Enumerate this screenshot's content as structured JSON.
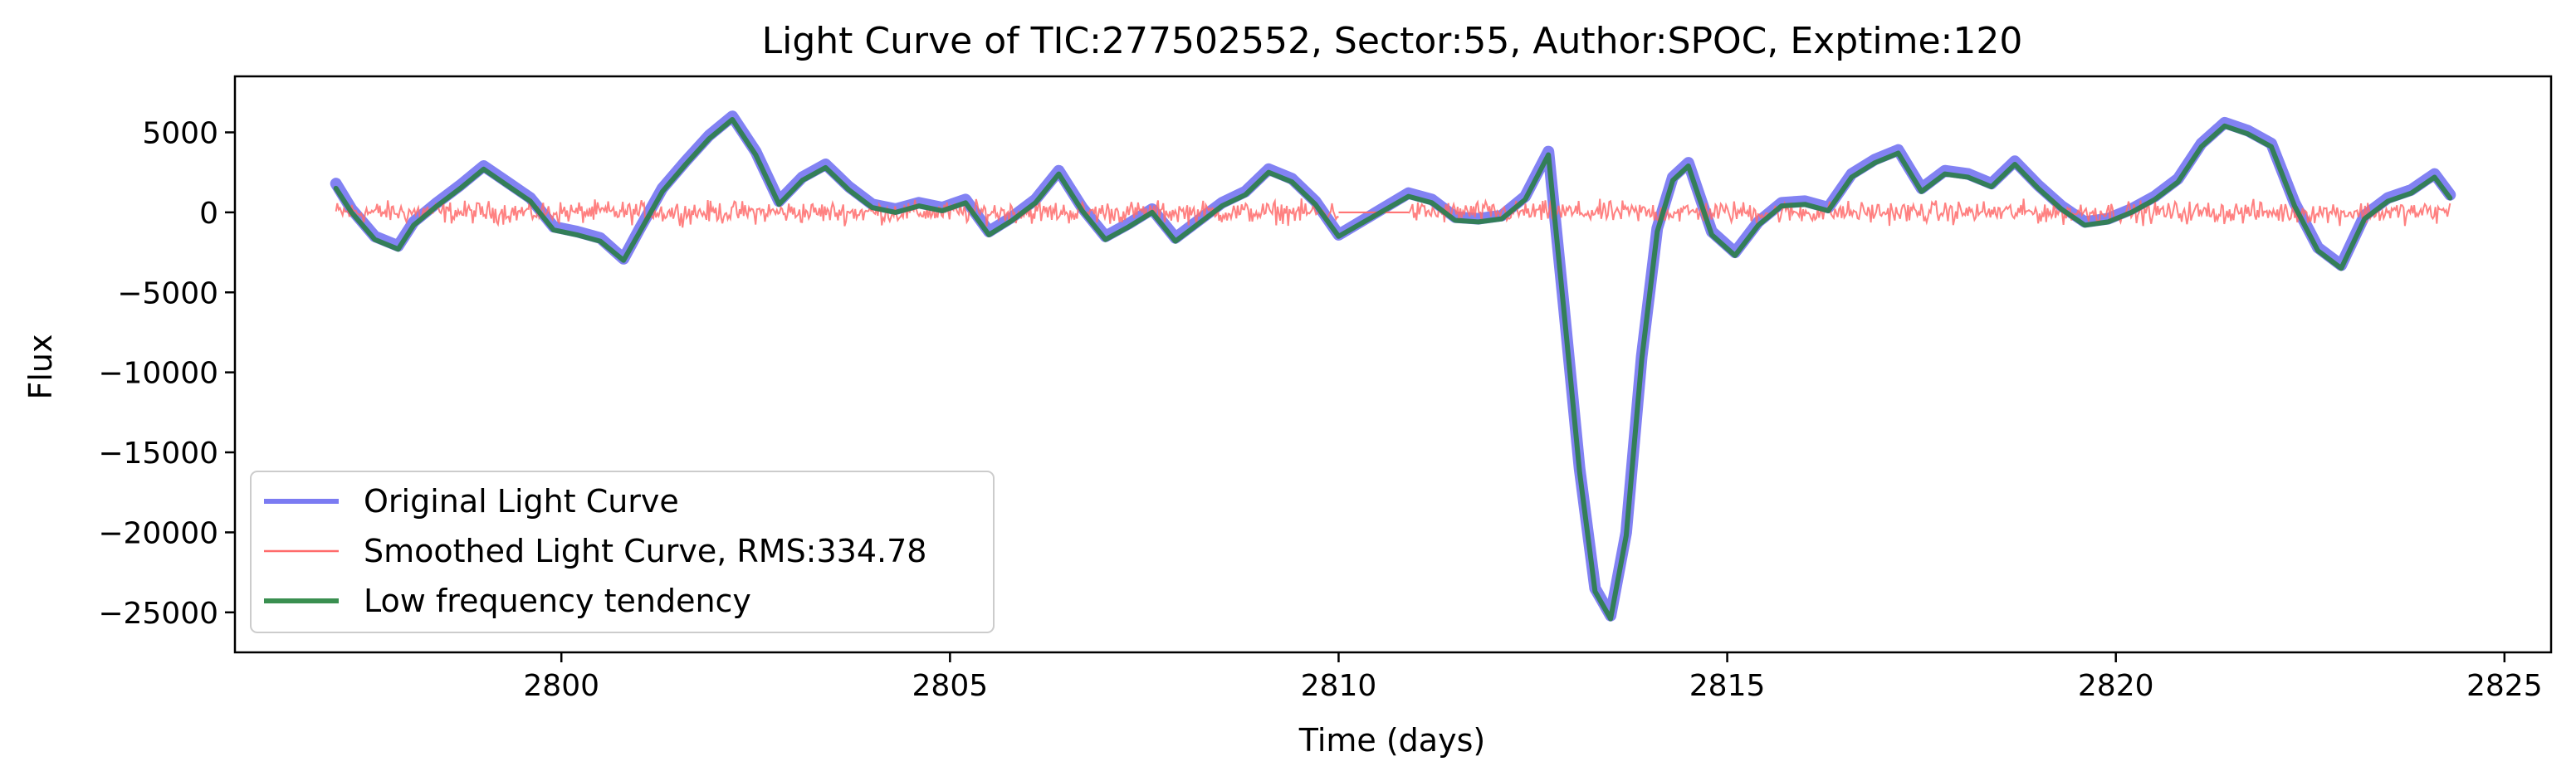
{
  "chart_data": {
    "type": "line",
    "title": "Light Curve of TIC:277502552, Sector:55, Author:SPOC, Exptime:120",
    "xlabel": "Time (days)",
    "ylabel": "Flux",
    "xlim": [
      2795.8,
      2825.6
    ],
    "ylim": [
      -27500,
      8500
    ],
    "xticks": [
      2800,
      2805,
      2810,
      2815,
      2820,
      2825
    ],
    "xtick_labels": [
      "2800",
      "2805",
      "2810",
      "2815",
      "2820",
      "2825"
    ],
    "yticks": [
      5000,
      0,
      -5000,
      -10000,
      -15000,
      -20000,
      -25000
    ],
    "ytick_labels": [
      "5000",
      "0",
      "−5000",
      "−10000",
      "−15000",
      "−20000",
      "−25000"
    ],
    "legend_position": "lower-left",
    "grid": false,
    "series": [
      {
        "name": "Original Light Curve",
        "color": "#7b7bf2",
        "style": "thick band",
        "x": [
          2797.1,
          2797.3,
          2797.6,
          2797.9,
          2798.1,
          2798.4,
          2798.7,
          2799.0,
          2799.3,
          2799.6,
          2799.9,
          2800.2,
          2800.5,
          2800.8,
          2801.0,
          2801.3,
          2801.6,
          2801.9,
          2802.2,
          2802.5,
          2802.8,
          2803.1,
          2803.4,
          2803.7,
          2804.0,
          2804.3,
          2804.6,
          2804.9,
          2805.2,
          2805.5,
          2805.8,
          2806.1,
          2806.4,
          2806.7,
          2807.0,
          2807.3,
          2807.6,
          2807.9,
          2808.2,
          2808.5,
          2808.8,
          2809.1,
          2809.4,
          2809.7,
          2810.0,
          2810.9,
          2811.2,
          2811.5,
          2811.8,
          2812.1,
          2812.4,
          2812.7,
          2812.9,
          2813.1,
          2813.3,
          2813.5,
          2813.7,
          2813.9,
          2814.1,
          2814.3,
          2814.5,
          2814.8,
          2815.1,
          2815.4,
          2815.7,
          2816.0,
          2816.3,
          2816.6,
          2816.9,
          2817.2,
          2817.5,
          2817.8,
          2818.1,
          2818.4,
          2818.7,
          2819.0,
          2819.3,
          2819.6,
          2819.9,
          2820.2,
          2820.5,
          2820.8,
          2821.1,
          2821.4,
          2821.7,
          2822.0,
          2822.3,
          2822.6,
          2822.9,
          2823.2,
          2823.5,
          2823.8,
          2824.1,
          2824.3
        ],
        "y": [
          1800,
          200,
          -1500,
          -2100,
          -600,
          600,
          1700,
          2900,
          1900,
          900,
          -900,
          -1200,
          -1600,
          -2900,
          -1100,
          1500,
          3200,
          4800,
          6000,
          3800,
          700,
          2200,
          3000,
          1600,
          500,
          200,
          600,
          300,
          800,
          -1200,
          -300,
          800,
          2600,
          300,
          -1500,
          -700,
          200,
          -1600,
          -500,
          600,
          1300,
          2700,
          2100,
          700,
          -1400,
          1200,
          800,
          -300,
          -400,
          -200,
          1000,
          3800,
          -6000,
          -16000,
          -23500,
          -25200,
          -20000,
          -9000,
          -1000,
          2200,
          3100,
          -1200,
          -2500,
          -600,
          600,
          700,
          300,
          2400,
          3300,
          3900,
          1500,
          2600,
          2400,
          1800,
          3200,
          1700,
          400,
          -600,
          -400,
          200,
          1000,
          2100,
          4300,
          5600,
          5100,
          4300,
          600,
          -2200,
          -3300,
          -200,
          900,
          1400,
          2400,
          1100
        ]
      },
      {
        "name": "Smoothed Light Curve, RMS:334.78",
        "color": "#ff6b6b",
        "style": "thin noisy line",
        "x_start": 2797.1,
        "x_end": 2824.3,
        "gap": [
          2810.0,
          2810.9
        ],
        "mean": 0,
        "rms": 334.78
      },
      {
        "name": "Low frequency tendency",
        "color": "#2e7d4f",
        "style": "thick line",
        "x": [
          2797.1,
          2797.3,
          2797.6,
          2797.9,
          2798.1,
          2798.4,
          2798.7,
          2799.0,
          2799.3,
          2799.6,
          2799.9,
          2800.2,
          2800.5,
          2800.8,
          2801.0,
          2801.3,
          2801.6,
          2801.9,
          2802.2,
          2802.5,
          2802.8,
          2803.1,
          2803.4,
          2803.7,
          2804.0,
          2804.3,
          2804.6,
          2804.9,
          2805.2,
          2805.5,
          2805.8,
          2806.1,
          2806.4,
          2806.7,
          2807.0,
          2807.3,
          2807.6,
          2807.9,
          2808.2,
          2808.5,
          2808.8,
          2809.1,
          2809.4,
          2809.7,
          2810.0,
          2810.9,
          2811.2,
          2811.5,
          2811.8,
          2812.1,
          2812.4,
          2812.7,
          2812.9,
          2813.1,
          2813.3,
          2813.5,
          2813.7,
          2813.9,
          2814.1,
          2814.3,
          2814.5,
          2814.8,
          2815.1,
          2815.4,
          2815.7,
          2816.0,
          2816.3,
          2816.6,
          2816.9,
          2817.2,
          2817.5,
          2817.8,
          2818.1,
          2818.4,
          2818.7,
          2819.0,
          2819.3,
          2819.6,
          2819.9,
          2820.2,
          2820.5,
          2820.8,
          2821.1,
          2821.4,
          2821.7,
          2822.0,
          2822.3,
          2822.6,
          2822.9,
          2823.2,
          2823.5,
          2823.8,
          2824.1,
          2824.3
        ],
        "y": [
          1500,
          0,
          -1700,
          -2300,
          -800,
          400,
          1500,
          2700,
          1700,
          700,
          -1100,
          -1400,
          -1800,
          -3000,
          -1300,
          1300,
          3000,
          4600,
          5800,
          3600,
          500,
          2000,
          2800,
          1400,
          300,
          0,
          400,
          100,
          600,
          -1400,
          -500,
          600,
          2400,
          100,
          -1700,
          -900,
          0,
          -1800,
          -700,
          400,
          1100,
          2500,
          1900,
          500,
          -1500,
          1000,
          600,
          -500,
          -600,
          -400,
          800,
          3600,
          -6200,
          -16200,
          -23700,
          -25400,
          -20200,
          -9200,
          -1200,
          2000,
          2900,
          -1400,
          -2700,
          -800,
          400,
          500,
          100,
          2200,
          3100,
          3700,
          1300,
          2400,
          2200,
          1600,
          3000,
          1500,
          200,
          -800,
          -600,
          0,
          800,
          1900,
          4100,
          5400,
          4900,
          4100,
          400,
          -2400,
          -3500,
          -400,
          700,
          1200,
          2200,
          900
        ]
      }
    ]
  }
}
